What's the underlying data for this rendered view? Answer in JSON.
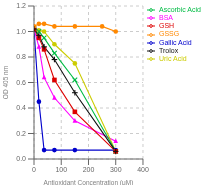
{
  "chart_data": {
    "type": "line",
    "xlabel": "Antioxidant Concentration (μM)",
    "ylabel": "OD 405 nm",
    "xlim": [
      0,
      400
    ],
    "ylim": [
      0,
      1.2
    ],
    "xticks": [
      0,
      100,
      200,
      300,
      400
    ],
    "yticks": [
      {
        "value": 0,
        "label": "0.0"
      },
      0.2,
      0.4,
      0.6,
      0.8,
      {
        "value": 1,
        "label": "1.0"
      },
      1.2
    ],
    "grid": true,
    "legend": "right",
    "series": [
      {
        "name": "Gallic Acid",
        "color": "#0000cc",
        "marker": "circle",
        "x": [
          0,
          18,
          37,
          75,
          150,
          300
        ],
        "values": [
          1.02,
          0.45,
          0.07,
          0.07,
          0.07,
          0.07
        ]
      },
      {
        "name": "BSA",
        "color": "#ff00ff",
        "marker": "triangle",
        "x": [
          0,
          18,
          37,
          75,
          150,
          300
        ],
        "values": [
          1.02,
          0.88,
          0.64,
          0.48,
          0.3,
          0.14
        ]
      },
      {
        "name": "Uric Acid",
        "color": "#cccc00",
        "marker": "circle",
        "x": [
          0,
          18,
          37,
          75,
          150,
          300
        ],
        "values": [
          1.02,
          1.01,
          1.0,
          0.9,
          0.75,
          0.06
        ]
      },
      {
        "name": "Ascorbic Acid",
        "color": "#00bb44",
        "marker": "x",
        "x": [
          0,
          18,
          37,
          75,
          150,
          300
        ],
        "values": [
          1.02,
          1.0,
          0.95,
          0.83,
          0.62,
          0.06
        ]
      },
      {
        "name": "GSH",
        "color": "#dd0000",
        "marker": "square",
        "x": [
          0,
          18,
          37,
          75,
          150,
          300
        ],
        "values": [
          1.02,
          0.95,
          0.86,
          0.62,
          0.37,
          0.06
        ]
      },
      {
        "name": "GSSG",
        "color": "#ff8800",
        "marker": "circle",
        "x": [
          0,
          18,
          37,
          75,
          150,
          250,
          300
        ],
        "values": [
          1.04,
          1.06,
          1.06,
          1.04,
          1.04,
          1.04,
          1.0
        ]
      },
      {
        "name": "Trolox",
        "color": "#111111",
        "marker": "plus",
        "x": [
          0,
          18,
          37,
          75,
          150,
          300
        ],
        "values": [
          1.02,
          0.97,
          0.88,
          0.78,
          0.52,
          0.06
        ]
      }
    ]
  }
}
